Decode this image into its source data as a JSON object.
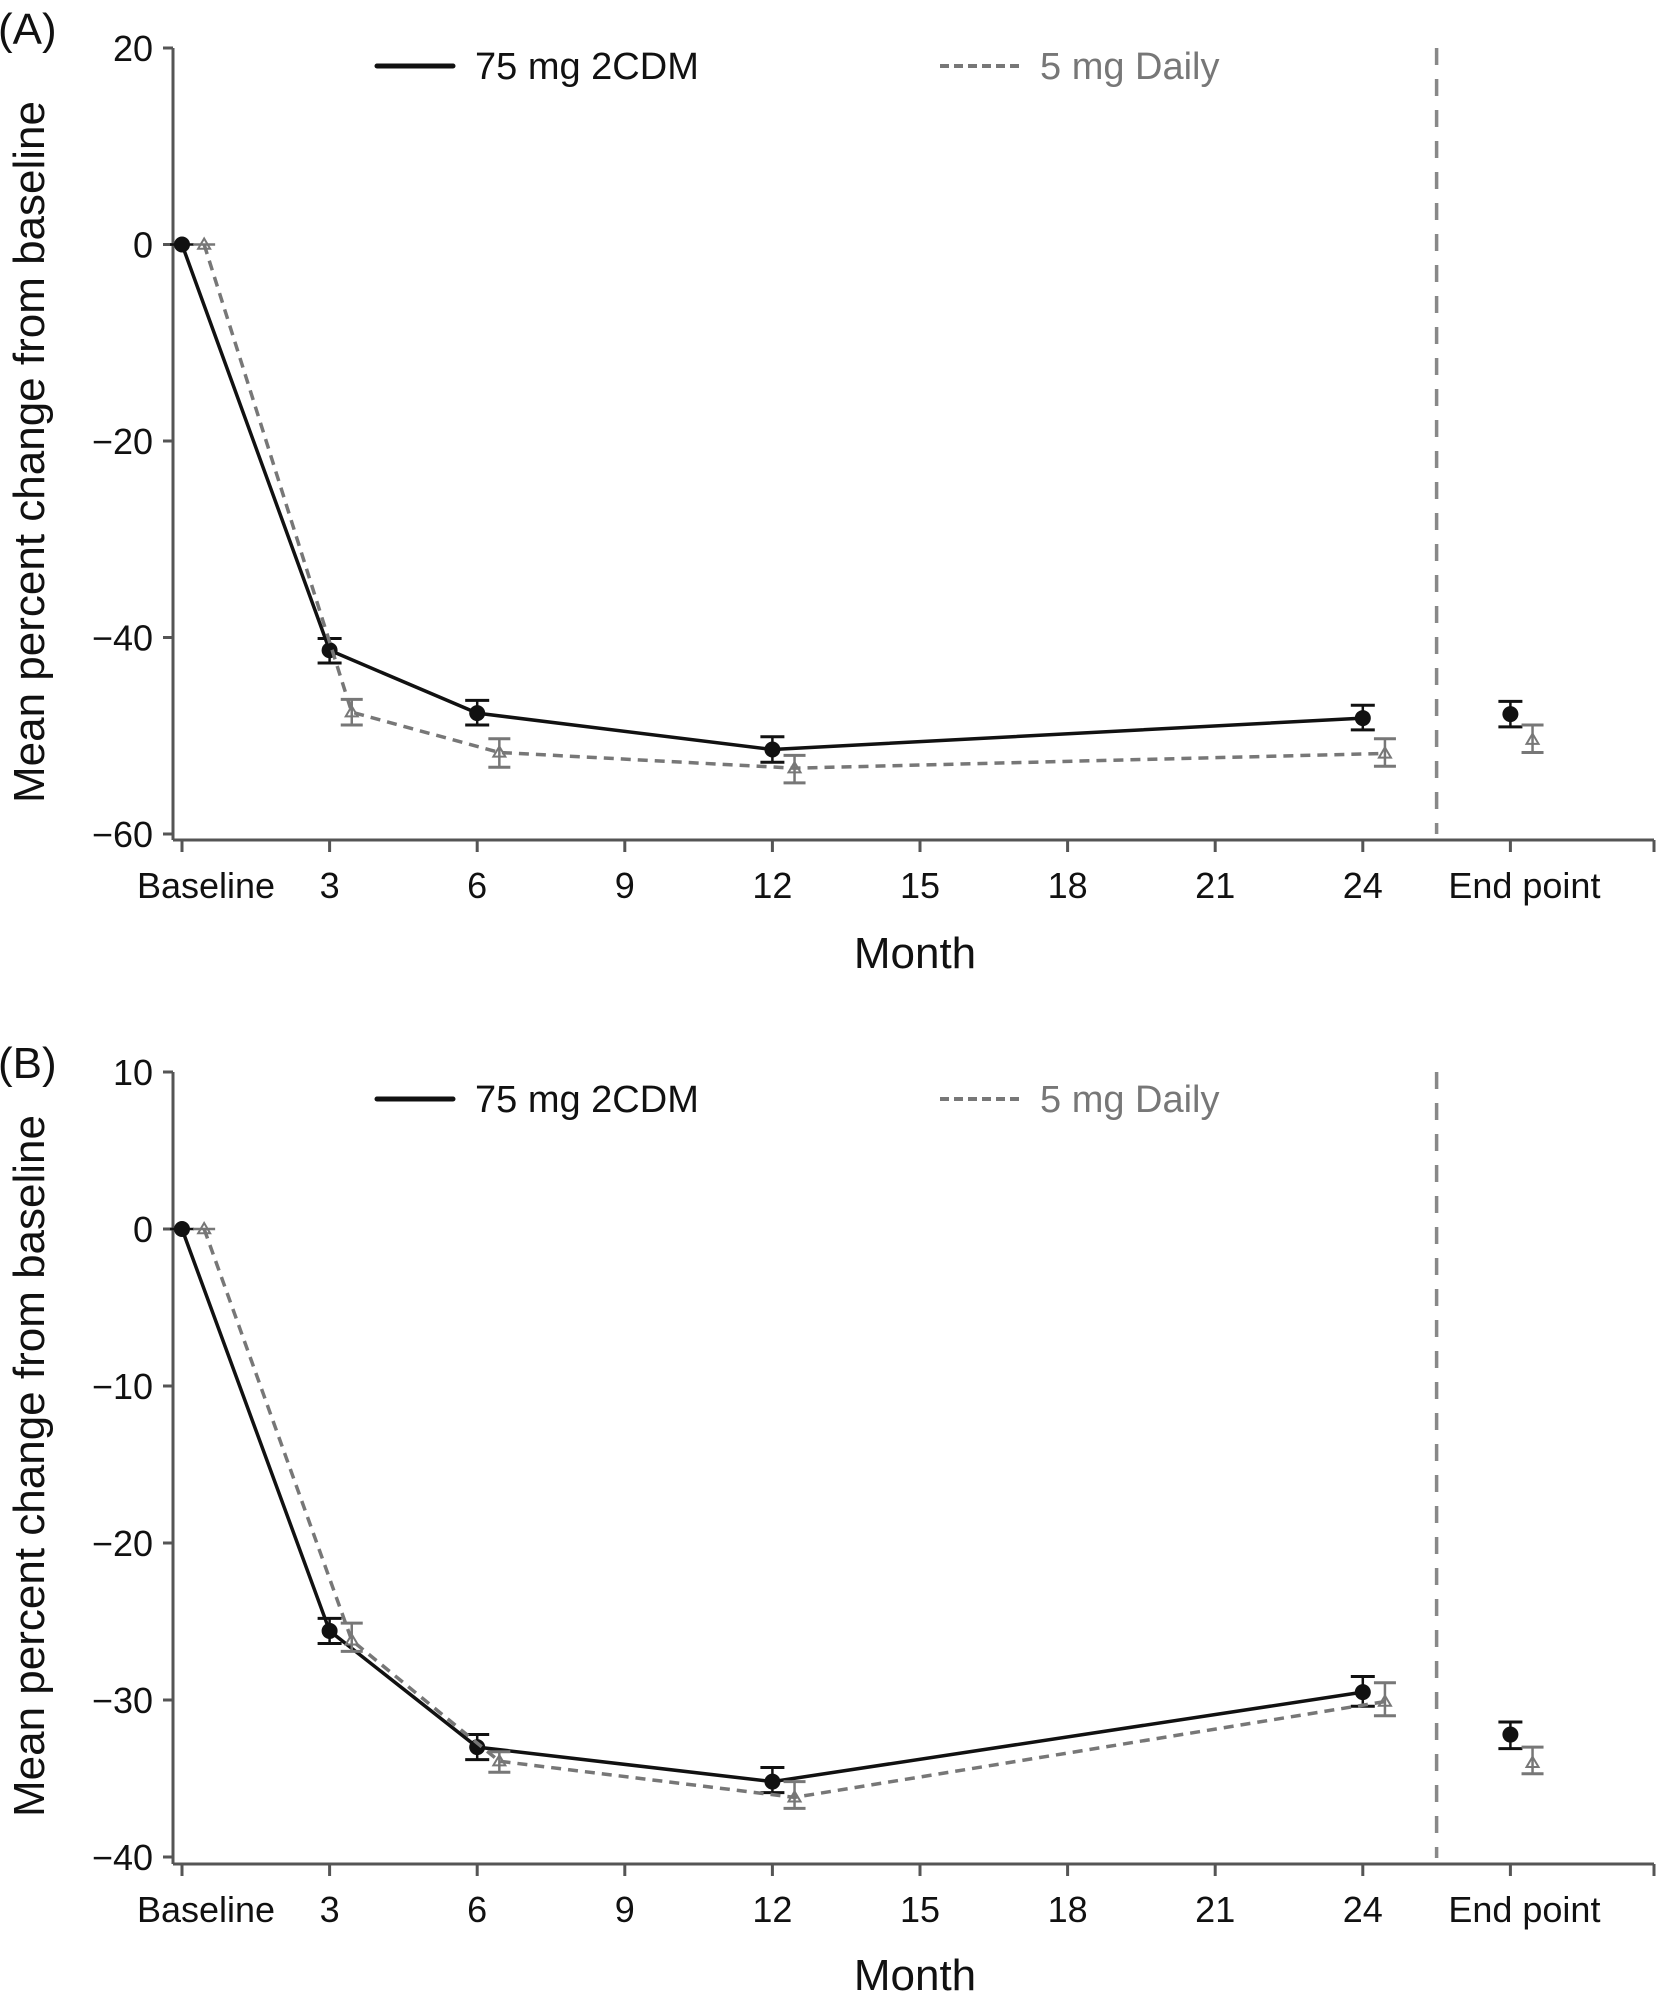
{
  "chart_data": [
    {
      "type": "line",
      "panel_label": "(A)",
      "title": "",
      "xlabel": "Month",
      "ylabel": "Mean percent change from baseline",
      "ylim": [
        -60,
        20
      ],
      "yticks": [
        20,
        0,
        -20,
        -40,
        -60
      ],
      "ytick_labels": [
        "20",
        "0",
        "−20",
        "−40",
        "−60"
      ],
      "x_categories": [
        "Baseline",
        "3",
        "6",
        "9",
        "12",
        "15",
        "18",
        "21",
        "24",
        "End point"
      ],
      "x_category_months": [
        0,
        3,
        6,
        9,
        12,
        15,
        18,
        21,
        24,
        27
      ],
      "separator_after": "24",
      "grid": false,
      "legend_position": "top",
      "series": [
        {
          "name": "75 mg 2CDM",
          "line_style": "solid",
          "marker": "circle",
          "color": "#111111",
          "x": [
            "Baseline",
            "3",
            "6",
            "12",
            "24"
          ],
          "values": [
            0,
            -41.3,
            -47.7,
            -51.4,
            -48.2
          ],
          "error_low": [
            0,
            -42.6,
            -48.9,
            -52.7,
            -49.4
          ],
          "error_high": [
            0,
            -40.1,
            -46.4,
            -50.1,
            -46.9
          ],
          "endpoint": {
            "value": -47.8,
            "error_low": -49.1,
            "error_high": -46.5
          }
        },
        {
          "name": "5 mg Daily",
          "line_style": "dashed",
          "marker": "triangle",
          "color": "#777777",
          "x": [
            "Baseline",
            "3",
            "6",
            "12",
            "24"
          ],
          "values": [
            0,
            -47.6,
            -51.7,
            -53.3,
            -51.8
          ],
          "error_low": [
            0,
            -48.9,
            -53.2,
            -54.8,
            -53.1
          ],
          "error_high": [
            0,
            -46.3,
            -50.3,
            -52.0,
            -50.3
          ],
          "endpoint": {
            "value": -50.4,
            "error_low": -51.7,
            "error_high": -48.9
          }
        }
      ]
    },
    {
      "type": "line",
      "panel_label": "(B)",
      "title": "",
      "xlabel": "Month",
      "ylabel": "Mean percent change from baseline",
      "ylim": [
        -40,
        10
      ],
      "yticks": [
        10,
        0,
        -10,
        -20,
        -30,
        -40
      ],
      "ytick_labels": [
        "10",
        "0",
        "−10",
        "−20",
        "−30",
        "−40"
      ],
      "x_categories": [
        "Baseline",
        "3",
        "6",
        "9",
        "12",
        "15",
        "18",
        "21",
        "24",
        "End point"
      ],
      "x_category_months": [
        0,
        3,
        6,
        9,
        12,
        15,
        18,
        21,
        24,
        27
      ],
      "separator_after": "24",
      "grid": false,
      "legend_position": "top",
      "series": [
        {
          "name": "75 mg 2CDM",
          "line_style": "solid",
          "marker": "circle",
          "color": "#111111",
          "x": [
            "Baseline",
            "3",
            "6",
            "12",
            "24"
          ],
          "values": [
            0,
            -25.6,
            -33.0,
            -35.2,
            -29.5
          ],
          "error_low": [
            0,
            -26.4,
            -33.8,
            -35.9,
            -30.4
          ],
          "error_high": [
            0,
            -24.8,
            -32.2,
            -34.3,
            -28.5
          ],
          "endpoint": {
            "value": -32.2,
            "error_low": -33.1,
            "error_high": -31.4
          }
        },
        {
          "name": "5 mg Daily",
          "line_style": "dashed",
          "marker": "triangle",
          "color": "#777777",
          "x": [
            "Baseline",
            "3",
            "6",
            "12",
            "24"
          ],
          "values": [
            0,
            -26.2,
            -33.9,
            -36.2,
            -30.1
          ],
          "error_low": [
            0,
            -26.9,
            -34.6,
            -36.9,
            -31.0
          ],
          "error_high": [
            0,
            -25.1,
            -33.3,
            -35.2,
            -28.9
          ],
          "endpoint": {
            "value": -34.0,
            "error_low": -34.7,
            "error_high": -33.0
          }
        }
      ]
    }
  ]
}
